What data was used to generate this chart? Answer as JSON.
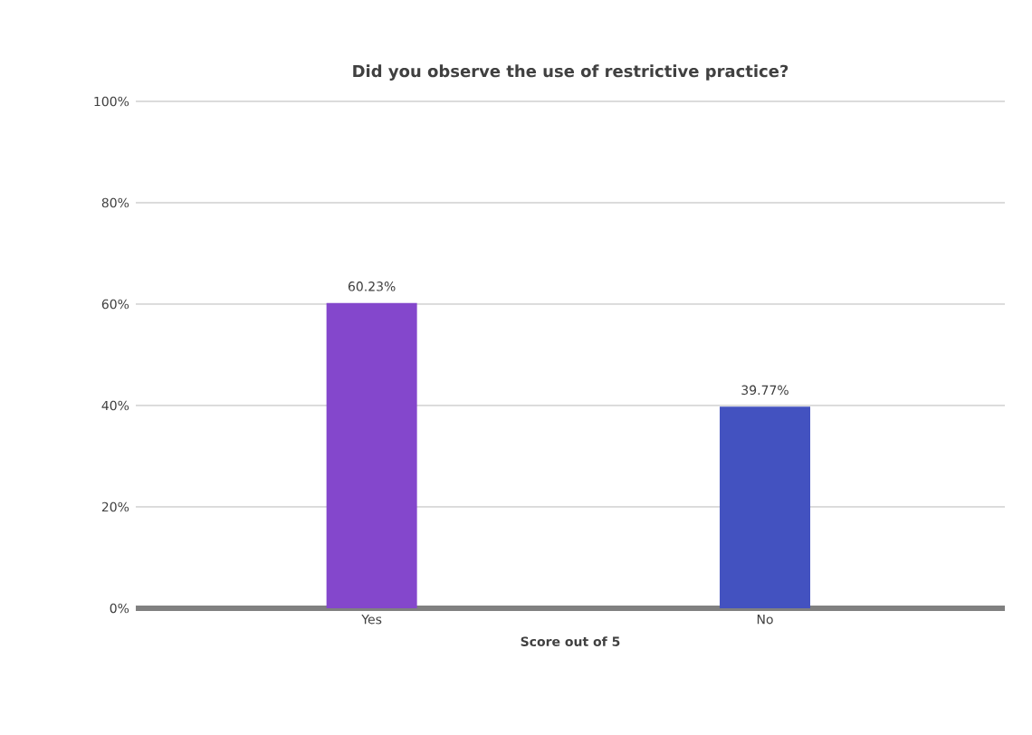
{
  "chart_data": {
    "type": "bar",
    "title": "Did you observe the use of restrictive practice?",
    "xlabel": "Score out of 5",
    "categories": [
      "Yes",
      "No"
    ],
    "values": [
      60.23,
      39.77
    ],
    "colors": [
      "#8447cc",
      "#4352c0"
    ],
    "value_labels": [
      "60.23%",
      "39.77%"
    ],
    "ylim": [
      0,
      100
    ],
    "yticks": [
      {
        "value": 0,
        "label": "0%"
      },
      {
        "value": 20,
        "label": "20%"
      },
      {
        "value": 40,
        "label": "40%"
      },
      {
        "value": 60,
        "label": "60%"
      },
      {
        "value": 80,
        "label": "80%"
      },
      {
        "value": 100,
        "label": "100%"
      }
    ],
    "grid": "y"
  }
}
